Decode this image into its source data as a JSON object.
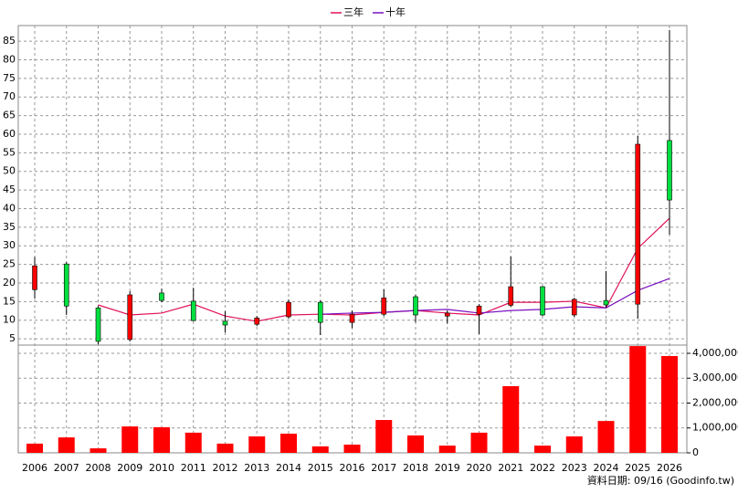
{
  "chart_data": {
    "type": "candlestick",
    "categories": [
      "2006",
      "2007",
      "2008",
      "2009",
      "2010",
      "2011",
      "2012",
      "2013",
      "2014",
      "2015",
      "2016",
      "2017",
      "2018",
      "2019",
      "2020",
      "2021",
      "2022",
      "2023",
      "2024",
      "2025",
      "2026"
    ],
    "open": [
      18.2,
      25.1,
      13.3,
      4.8,
      17.3,
      15.1,
      9.7,
      8.9,
      10.9,
      14.8,
      9.4,
      11.6,
      16.3,
      11.1,
      11.6,
      14.0,
      19.0,
      11.4,
      15.3,
      14.3,
      58.3
    ],
    "high": [
      27.0,
      25.6,
      13.8,
      17.8,
      18.5,
      18.7,
      12.4,
      11.1,
      15.6,
      15.3,
      12.6,
      18.3,
      16.8,
      12.6,
      14.3,
      27.1,
      19.2,
      16.0,
      23.2,
      59.5,
      88.0
    ],
    "low": [
      15.8,
      11.4,
      3.5,
      4.3,
      14.8,
      9.7,
      6.7,
      8.4,
      10.4,
      6.0,
      7.9,
      11.1,
      9.4,
      9.1,
      6.2,
      13.6,
      11.1,
      10.9,
      13.3,
      10.4,
      33.0
    ],
    "close": [
      24.6,
      13.8,
      4.3,
      16.8,
      15.3,
      9.9,
      8.7,
      10.6,
      14.8,
      9.4,
      11.6,
      16.0,
      11.4,
      11.9,
      13.8,
      19.0,
      11.4,
      15.6,
      14.1,
      57.3,
      42.3
    ],
    "up_color": "#ff0000",
    "down_color": "#00e040",
    "series": [
      {
        "name": "三年",
        "color": "#e0105a",
        "values": [
          null,
          null,
          14.1,
          11.4,
          11.9,
          14.3,
          11.1,
          9.7,
          11.4,
          11.6,
          11.4,
          12.1,
          12.6,
          11.9,
          11.4,
          14.8,
          14.8,
          15.1,
          13.3,
          29.3,
          37.4
        ]
      },
      {
        "name": "十年",
        "color": "#7a10c0",
        "values": [
          null,
          null,
          null,
          null,
          null,
          null,
          null,
          null,
          null,
          11.6,
          11.9,
          12.1,
          12.6,
          12.9,
          11.9,
          12.6,
          12.9,
          13.6,
          13.3,
          18.0,
          21.2
        ]
      }
    ],
    "volume": {
      "color": "#ff0000",
      "axis": "y2",
      "values": [
        370000,
        620000,
        180000,
        1060000,
        1030000,
        810000,
        370000,
        660000,
        770000,
        260000,
        330000,
        1320000,
        700000,
        290000,
        810000,
        2680000,
        290000,
        660000,
        1280000,
        4290000,
        3890000
      ]
    },
    "ylim": [
      3.3,
      89.2
    ],
    "yticks": [
      5,
      10,
      15,
      20,
      25,
      30,
      35,
      40,
      45,
      50,
      55,
      60,
      65,
      70,
      75,
      80,
      85
    ],
    "y2lim": [
      0,
      4330000
    ],
    "y2ticks": [
      0,
      {
        "value": 1000000,
        "label": "1,000,000"
      },
      {
        "value": 2000000,
        "label": "2,000,000"
      },
      {
        "value": 3000000,
        "label": "3,000,000"
      },
      {
        "value": 4000000,
        "label": "4,000,000"
      }
    ],
    "grid": true,
    "source": "資料日期: 09/16  (Goodinfo.tw)"
  }
}
